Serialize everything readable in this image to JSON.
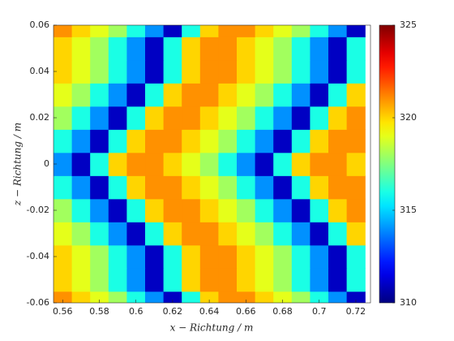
{
  "chart_data": {
    "type": "heatmap",
    "xlabel": "x − Richtung / m",
    "ylabel": "z − Richtung / m",
    "x": [
      0.56,
      0.57,
      0.58,
      0.59,
      0.6,
      0.61,
      0.62,
      0.63,
      0.64,
      0.65,
      0.66,
      0.67,
      0.68,
      0.69,
      0.7,
      0.71,
      0.72
    ],
    "y": [
      -0.06,
      -0.05,
      -0.04,
      -0.03,
      -0.02,
      -0.01,
      0,
      0.01,
      0.02,
      0.03,
      0.04,
      0.05,
      0.06
    ],
    "z": [
      [
        321,
        320,
        319,
        318,
        316,
        314,
        311,
        316,
        320,
        321,
        321,
        320,
        319,
        318,
        316,
        314,
        311
      ],
      [
        320,
        319,
        318,
        316,
        314,
        311,
        316,
        320,
        321,
        321,
        320,
        319,
        318,
        316,
        314,
        311,
        316
      ],
      [
        320,
        319,
        318,
        316,
        314,
        311,
        316,
        320,
        321,
        321,
        320,
        319,
        318,
        316,
        314,
        311,
        316
      ],
      [
        319,
        318,
        316,
        314,
        311,
        316,
        320,
        321,
        321,
        320,
        319,
        318,
        316,
        314,
        311,
        316,
        320
      ],
      [
        318,
        316,
        314,
        311,
        316,
        320,
        321,
        321,
        320,
        319,
        318,
        316,
        314,
        311,
        316,
        320,
        321
      ],
      [
        316,
        314,
        311,
        316,
        320,
        321,
        321,
        320,
        319,
        318,
        316,
        314,
        311,
        316,
        320,
        321,
        321
      ],
      [
        314,
        311,
        316,
        320,
        321,
        321,
        320,
        319,
        318,
        316,
        314,
        311,
        316,
        320,
        321,
        321,
        320
      ],
      [
        316,
        314,
        311,
        316,
        320,
        321,
        321,
        320,
        319,
        318,
        316,
        314,
        311,
        316,
        320,
        321,
        321
      ],
      [
        318,
        316,
        314,
        311,
        316,
        320,
        321,
        321,
        320,
        319,
        318,
        316,
        314,
        311,
        316,
        320,
        321
      ],
      [
        319,
        318,
        316,
        314,
        311,
        316,
        320,
        321,
        321,
        320,
        319,
        318,
        316,
        314,
        311,
        316,
        320
      ],
      [
        320,
        319,
        318,
        316,
        314,
        311,
        316,
        320,
        321,
        321,
        320,
        319,
        318,
        316,
        314,
        311,
        316
      ],
      [
        320,
        319,
        318,
        316,
        314,
        311,
        316,
        320,
        321,
        321,
        320,
        319,
        318,
        316,
        314,
        311,
        316
      ],
      [
        321,
        320,
        319,
        318,
        316,
        314,
        311,
        316,
        320,
        321,
        321,
        320,
        319,
        318,
        316,
        314,
        311
      ]
    ],
    "xlim": [
      0.555,
      0.728
    ],
    "ylim": [
      -0.06,
      0.06
    ],
    "xticks": [
      0.56,
      0.58,
      0.6,
      0.62,
      0.64,
      0.66,
      0.68,
      0.7,
      0.72
    ],
    "yticks": [
      -0.06,
      -0.04,
      -0.02,
      0,
      0.02,
      0.04,
      0.06
    ],
    "clim": [
      310,
      325
    ],
    "cticks": [
      310,
      315,
      320,
      325
    ],
    "colormap": "jet"
  }
}
